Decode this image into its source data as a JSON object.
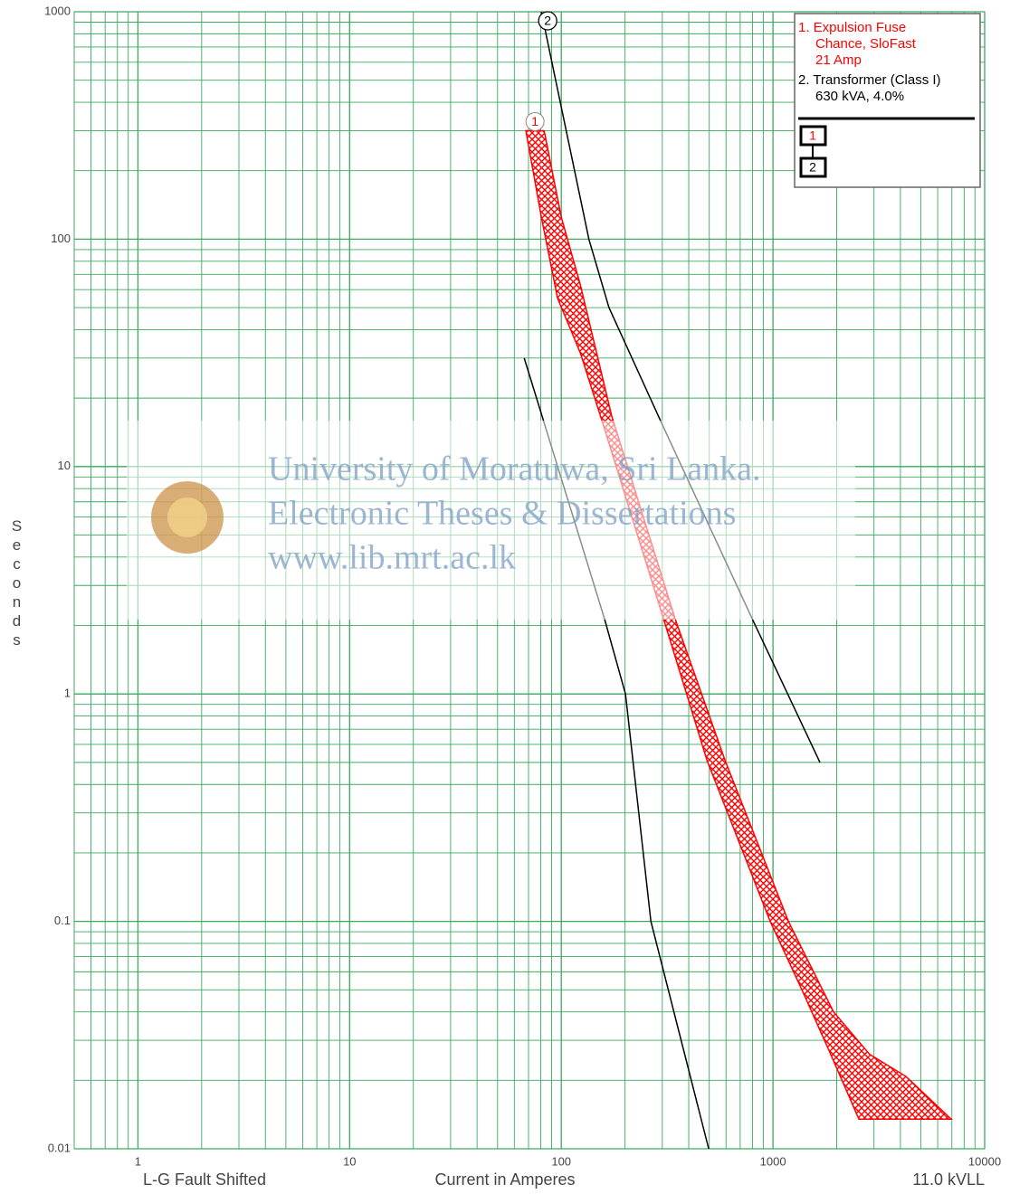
{
  "chart_data": {
    "type": "tcc",
    "ylabel": "Seconds",
    "xlabel": "Current in Amperes",
    "note_left": "L-G Fault Shifted",
    "note_right": "11.0 kVLL",
    "log": true,
    "grid": true,
    "grid_color": "#3aaa5e",
    "xlim": [
      0.5,
      10000
    ],
    "ylim": [
      0.01,
      1000
    ],
    "xticks": [
      1,
      10,
      100,
      1000,
      10000
    ],
    "yticks": [
      1000,
      100,
      10,
      1,
      0.1,
      0.01
    ],
    "bands": [
      {
        "label": "1",
        "color": "#ff0000",
        "min": {
          "x": [
            68,
            80.5,
            96,
            123,
            157,
            304,
            488,
            970,
            1370,
            1841,
            2546,
            6950
          ],
          "y": [
            300,
            125,
            55,
            31.6,
            15.5,
            2.14,
            0.51,
            0.1,
            0.05,
            0.027,
            0.0135,
            0.0135
          ]
        },
        "max": {
          "x": [
            83,
            100,
            123,
            173,
            345,
            594,
            1183,
            1932,
            2864,
            4250,
            6950
          ],
          "y": [
            300,
            125,
            63,
            16.7,
            2.14,
            0.51,
            0.1,
            0.04,
            0.026,
            0.0208,
            0.0135
          ]
        }
      }
    ],
    "curves": [
      {
        "label": "2",
        "color": "#000000",
        "x": [
          80.5,
          135,
          168,
          298,
          798,
          1667,
          null,
          66.8,
          160,
          201,
          265,
          497
        ],
        "y": [
          1000,
          100,
          50,
          15.5,
          2.14,
          0.5,
          null,
          30,
          2.14,
          1,
          0.1,
          0.01
        ]
      }
    ],
    "legend": {
      "items": [
        {
          "color": "#ff0000",
          "lines": [
            "1. Expulsion Fuse",
            "Chance, SloFast",
            "21 Amp"
          ]
        },
        {
          "color": "#000000",
          "lines": [
            "2. Transformer (Class I)",
            "630 kVA, 4.0%"
          ]
        }
      ],
      "boxes": [
        "1",
        "2"
      ]
    }
  },
  "watermark": {
    "lines": [
      "University of Moratuwa, Sri Lanka.",
      "Electronic Theses & Dissertations",
      "www.lib.mrt.ac.lk"
    ]
  }
}
